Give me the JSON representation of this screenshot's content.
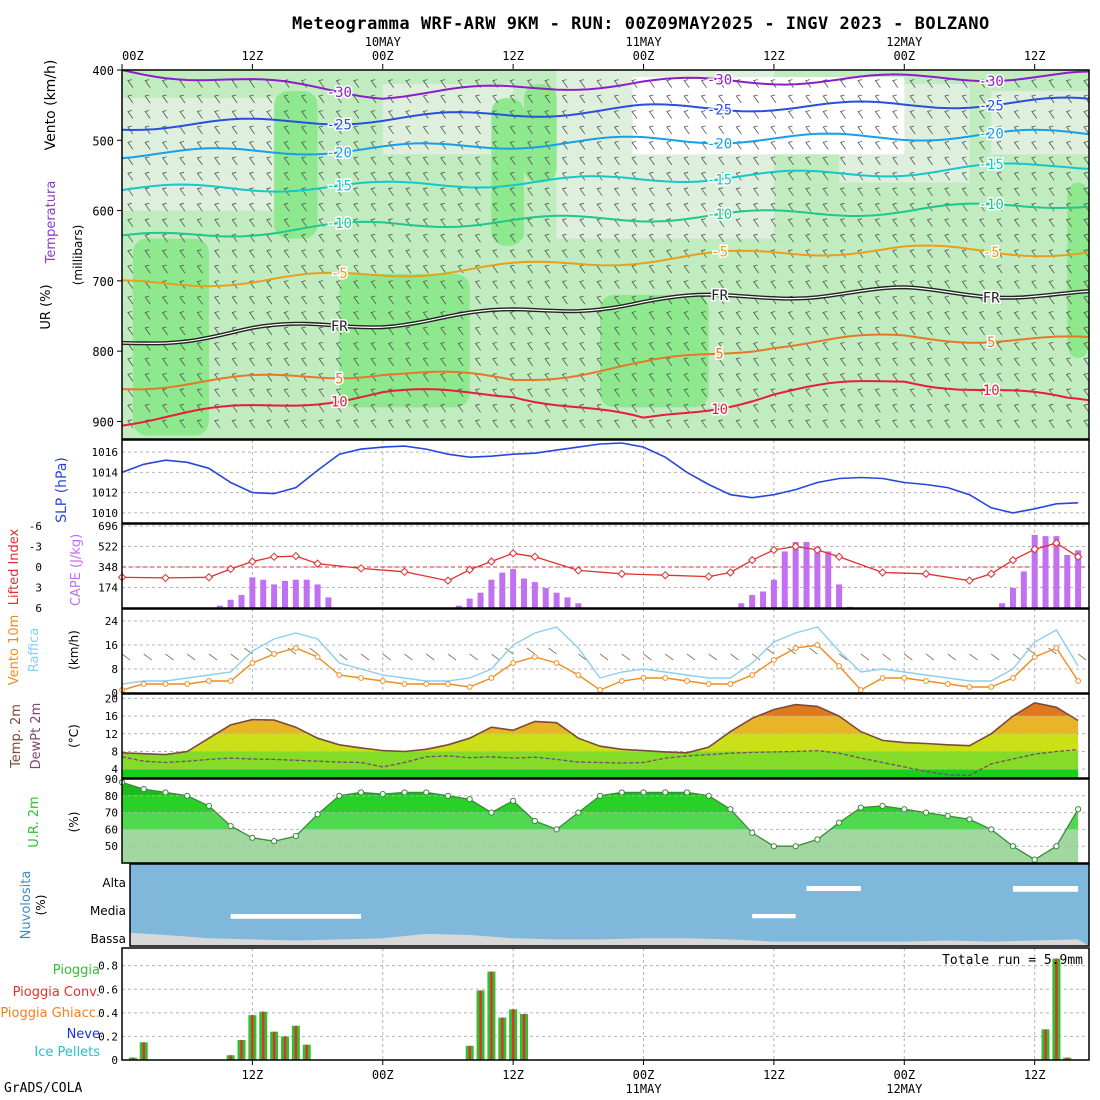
{
  "title": "Meteogramma WRF-ARW 9KM - RUN: 00Z09MAY2025 - INGV 2023 - BOLZANO",
  "footer": "GrADS/COLA",
  "top_time_axis": {
    "ticks": [
      {
        "hour": 0,
        "label": "00Z",
        "date": ""
      },
      {
        "hour": 12,
        "label": "12Z",
        "date": ""
      },
      {
        "hour": 24,
        "label": "00Z",
        "date": "10MAY"
      },
      {
        "hour": 36,
        "label": "12Z",
        "date": ""
      },
      {
        "hour": 48,
        "label": "00Z",
        "date": "11MAY"
      },
      {
        "hour": 60,
        "label": "12Z",
        "date": ""
      },
      {
        "hour": 72,
        "label": "00Z",
        "date": "12MAY"
      },
      {
        "hour": 84,
        "label": "12Z",
        "date": ""
      }
    ]
  },
  "bottom_time_axis": {
    "ticks": [
      {
        "hour": 12,
        "label": "12Z",
        "date": ""
      },
      {
        "hour": 24,
        "label": "00Z",
        "date": ""
      },
      {
        "hour": 36,
        "label": "12Z",
        "date": ""
      },
      {
        "hour": 48,
        "label": "00Z",
        "date": "11MAY"
      },
      {
        "hour": 60,
        "label": "12Z",
        "date": ""
      },
      {
        "hour": 72,
        "label": "00Z",
        "date": "12MAY"
      },
      {
        "hour": 84,
        "label": "12Z",
        "date": ""
      }
    ]
  },
  "chart_data": [
    {
      "id": "upper_air",
      "type": "heatmap",
      "ylabels": [
        "Vento (km/h)",
        "Temperatura",
        "UR (%)"
      ],
      "yaxis_title": "(millibars)",
      "yticks": [
        400,
        500,
        600,
        700,
        800,
        900
      ],
      "ylim": [
        400,
        925
      ],
      "rh_levels": [
        50,
        70,
        90
      ],
      "colors": {
        "rh50": "#e1f0e1",
        "rh70": "#c0ecc0",
        "rh90": "#8ee88e"
      },
      "temperature_isotherms": [
        {
          "label": "-30",
          "color": "#8c1ec8",
          "hours": [
            0,
            24,
            48,
            72,
            87
          ],
          "pressure": [
            400,
            435,
            418,
            412,
            408
          ]
        },
        {
          "label": "-25",
          "color": "#2850dc",
          "hours": [
            0,
            24,
            48,
            72,
            87
          ],
          "pressure": [
            480,
            470,
            455,
            450,
            445
          ]
        },
        {
          "label": "-20",
          "color": "#18a0e6",
          "hours": [
            0,
            24,
            48,
            72,
            87
          ],
          "pressure": [
            520,
            512,
            500,
            495,
            490
          ]
        },
        {
          "label": "-15",
          "color": "#14c8c8",
          "hours": [
            0,
            24,
            48,
            72,
            87
          ],
          "pressure": [
            570,
            565,
            555,
            545,
            535
          ]
        },
        {
          "label": "-10",
          "color": "#1ec88c",
          "hours": [
            0,
            24,
            48,
            72,
            87
          ],
          "pressure": [
            640,
            620,
            610,
            600,
            590
          ]
        },
        {
          "label": "-5",
          "color": "#e6a01e",
          "hours": [
            0,
            12,
            24,
            36,
            48,
            60,
            72,
            87
          ],
          "pressure": [
            705,
            700,
            690,
            680,
            670,
            660,
            655,
            660
          ]
        },
        {
          "label": "FR",
          "color": "#222222",
          "hours": [
            0,
            12,
            24,
            36,
            48,
            60,
            72,
            87
          ],
          "pressure": [
            790,
            770,
            760,
            745,
            730,
            720,
            715,
            720
          ]
        },
        {
          "label": "5",
          "color": "#e67828",
          "hours": [
            0,
            12,
            24,
            36,
            48,
            60,
            72,
            87
          ],
          "pressure": [
            850,
            840,
            830,
            840,
            820,
            790,
            780,
            785
          ]
        },
        {
          "label": "10",
          "color": "#e61e3c",
          "hours": [
            0,
            12,
            24,
            36,
            48,
            60,
            72,
            87
          ],
          "pressure": [
            900,
            880,
            860,
            860,
            900,
            860,
            840,
            870
          ]
        }
      ]
    },
    {
      "id": "slp",
      "type": "line",
      "ylabel": "SLP (hPa)",
      "yticks": [
        1010,
        1012,
        1014,
        1016
      ],
      "ylim": [
        1009,
        1017.2
      ],
      "color": "#2846dc",
      "hours": [
        0,
        2,
        4,
        6,
        8,
        10,
        12,
        14,
        16,
        18,
        20,
        22,
        24,
        26,
        28,
        30,
        32,
        34,
        36,
        38,
        40,
        42,
        44,
        46,
        48,
        50,
        52,
        54,
        56,
        58,
        60,
        62,
        64,
        66,
        68,
        70,
        72,
        74,
        76,
        78,
        80,
        82,
        84,
        86,
        88
      ],
      "values": [
        1014.0,
        1014.8,
        1015.2,
        1015.0,
        1014.4,
        1013.0,
        1012.0,
        1011.9,
        1012.5,
        1014.2,
        1015.8,
        1016.3,
        1016.5,
        1016.6,
        1016.3,
        1015.8,
        1015.5,
        1015.6,
        1015.8,
        1015.9,
        1016.2,
        1016.5,
        1016.8,
        1016.9,
        1016.5,
        1015.5,
        1014.0,
        1012.8,
        1011.8,
        1011.5,
        1011.8,
        1012.3,
        1013.0,
        1013.4,
        1013.5,
        1013.4,
        1013.0,
        1012.8,
        1012.5,
        1011.8,
        1010.5,
        1010.0,
        1010.4,
        1010.9,
        1011.0
      ]
    },
    {
      "id": "cape_li",
      "type": "bar",
      "ylabels": [
        "Lifted Index",
        "CAPE (J/kg)"
      ],
      "li_ticks": [
        -6,
        -3,
        0,
        3,
        6
      ],
      "cape_ticks": [
        174,
        348,
        522,
        696
      ],
      "cape_max": 696,
      "colors": {
        "cape": "#c070f0",
        "li": "#e03030"
      },
      "cape_hours": [
        9,
        10,
        11,
        12,
        13,
        14,
        15,
        16,
        17,
        18,
        19,
        31,
        32,
        33,
        34,
        35,
        36,
        37,
        38,
        39,
        40,
        41,
        42,
        57,
        58,
        59,
        60,
        61,
        62,
        63,
        64,
        65,
        66,
        67,
        81,
        82,
        83,
        84,
        85,
        86,
        87,
        88
      ],
      "cape_values": [
        20,
        70,
        110,
        260,
        240,
        200,
        230,
        240,
        240,
        200,
        90,
        20,
        80,
        130,
        240,
        300,
        330,
        250,
        220,
        170,
        130,
        90,
        40,
        40,
        110,
        140,
        240,
        480,
        560,
        560,
        520,
        480,
        200,
        10,
        40,
        170,
        310,
        620,
        610,
        610,
        450,
        490
      ],
      "li_hours": [
        0,
        4,
        8,
        10,
        12,
        14,
        16,
        18,
        22,
        26,
        30,
        32,
        34,
        36,
        38,
        42,
        46,
        50,
        54,
        56,
        58,
        60,
        62,
        64,
        66,
        70,
        74,
        78,
        80,
        82,
        84,
        86,
        88
      ],
      "li_values": [
        1.5,
        1.6,
        1.5,
        0.3,
        -0.8,
        -1.5,
        -1.6,
        -0.5,
        0.2,
        0.7,
        2.0,
        0.4,
        -0.8,
        -2.0,
        -1.5,
        0.5,
        1.0,
        1.2,
        1.4,
        0.8,
        -1.0,
        -2.5,
        -3.0,
        -2.5,
        -1.5,
        0.8,
        1.0,
        2.0,
        1.0,
        -1.0,
        -2.6,
        -3.5,
        -1.5
      ]
    },
    {
      "id": "wind",
      "type": "line",
      "ylabels": [
        "Vento 10m",
        "Raffica"
      ],
      "yaxis_title": "(km/h)",
      "yticks": [
        0,
        8,
        16,
        24
      ],
      "ylim": [
        0,
        28
      ],
      "colors": {
        "wind": "#f08c1e",
        "gust": "#8ccfee",
        "barbs": "#8c6e50"
      },
      "hours": [
        0,
        2,
        4,
        6,
        8,
        10,
        12,
        14,
        16,
        18,
        20,
        22,
        24,
        26,
        28,
        30,
        32,
        34,
        36,
        38,
        40,
        42,
        44,
        46,
        48,
        50,
        52,
        54,
        56,
        58,
        60,
        62,
        64,
        66,
        68,
        70,
        72,
        74,
        76,
        78,
        80,
        82,
        84,
        86,
        88
      ],
      "wind": [
        1,
        3,
        3,
        3,
        4,
        4,
        10,
        13,
        15,
        12,
        6,
        5,
        4,
        3,
        3,
        3,
        2,
        5,
        10,
        12,
        10,
        6,
        1,
        4,
        5,
        5,
        4,
        3,
        3,
        6,
        11,
        15,
        16,
        9,
        1,
        5,
        5,
        4,
        3,
        2,
        2,
        5,
        12,
        15,
        4
      ],
      "gust": [
        3,
        4,
        4,
        5,
        6,
        7,
        14,
        18,
        20,
        18,
        10,
        8,
        6,
        5,
        4,
        4,
        5,
        8,
        16,
        20,
        22,
        15,
        5,
        7,
        8,
        7,
        6,
        5,
        5,
        10,
        17,
        20,
        22,
        14,
        7,
        8,
        7,
        6,
        5,
        4,
        4,
        8,
        17,
        21,
        9
      ]
    },
    {
      "id": "temperature",
      "type": "area",
      "ylabels": [
        "Temp. 2m",
        "DewPt 2m"
      ],
      "yaxis_title": "(°C)",
      "yticks": [
        4,
        8,
        12,
        16,
        20
      ],
      "ylim": [
        2,
        21
      ],
      "colors": {
        "temp_line": "#7a4a3a",
        "dew_line": "#7a4a6a"
      },
      "hours": [
        0,
        2,
        4,
        6,
        8,
        10,
        12,
        14,
        16,
        18,
        20,
        22,
        24,
        26,
        28,
        30,
        32,
        34,
        36,
        38,
        40,
        42,
        44,
        46,
        48,
        50,
        52,
        54,
        56,
        58,
        60,
        62,
        64,
        66,
        68,
        70,
        72,
        74,
        76,
        78,
        80,
        82,
        84,
        86,
        88
      ],
      "temp": [
        7.7,
        7.5,
        7.3,
        8.0,
        11.0,
        14.0,
        15.2,
        15.1,
        13.5,
        11.0,
        9.5,
        8.8,
        8.2,
        8.0,
        8.5,
        9.5,
        11.0,
        13.5,
        12.8,
        14.8,
        14.5,
        11.0,
        9.2,
        8.5,
        8.2,
        7.9,
        7.7,
        9.0,
        12.5,
        15.5,
        17.5,
        18.6,
        18.2,
        16.0,
        12.5,
        10.5,
        10.0,
        9.8,
        9.5,
        9.3,
        12.0,
        16.0,
        19.0,
        18.0,
        15.0
      ],
      "dewpoint": [
        6.8,
        5.8,
        5.5,
        5.8,
        6.2,
        6.5,
        6.3,
        6.2,
        6.0,
        5.8,
        5.6,
        5.5,
        4.5,
        5.5,
        6.8,
        7.0,
        6.6,
        6.8,
        6.5,
        6.7,
        6.2,
        5.6,
        5.5,
        5.4,
        5.5,
        6.5,
        7.0,
        7.3,
        7.6,
        7.8,
        7.9,
        8.0,
        8.2,
        7.6,
        6.5,
        5.5,
        4.5,
        3.5,
        2.7,
        2.6,
        5.2,
        6.3,
        7.4,
        8.0,
        8.4
      ],
      "bands": [
        {
          "from": 2,
          "to": 4,
          "color": "#18d018"
        },
        {
          "from": 4,
          "to": 8,
          "color": "#84dc28"
        },
        {
          "from": 8,
          "to": 12,
          "color": "#cce018"
        },
        {
          "from": 12,
          "to": 16,
          "color": "#e8b428"
        },
        {
          "from": 16,
          "to": 20,
          "color": "#e07820"
        },
        {
          "from": 20,
          "to": 24,
          "color": "#d83c18"
        }
      ]
    },
    {
      "id": "humidity",
      "type": "area",
      "ylabel": "U.R. 2m",
      "yaxis_title": "(%)",
      "yticks": [
        50,
        60,
        70,
        80,
        90
      ],
      "ylim": [
        40,
        90
      ],
      "hours": [
        0,
        2,
        4,
        6,
        8,
        10,
        12,
        14,
        16,
        18,
        20,
        22,
        24,
        26,
        28,
        30,
        32,
        34,
        36,
        38,
        40,
        42,
        44,
        46,
        48,
        50,
        52,
        54,
        56,
        58,
        60,
        62,
        64,
        66,
        68,
        70,
        72,
        74,
        76,
        78,
        80,
        82,
        84,
        86,
        88
      ],
      "values": [
        88,
        84,
        82,
        80,
        74,
        62,
        55,
        53,
        56,
        69,
        80,
        82,
        81,
        82,
        82,
        80,
        78,
        70,
        77,
        65,
        60,
        70,
        80,
        82,
        82,
        82,
        82,
        80,
        72,
        58,
        50,
        50,
        54,
        64,
        73,
        74,
        72,
        70,
        68,
        66,
        60,
        50,
        42,
        50,
        72
      ],
      "bands": [
        {
          "from": 40,
          "to": 60,
          "color": "#a0d8a0"
        },
        {
          "from": 60,
          "to": 70,
          "color": "#50d850"
        },
        {
          "from": 70,
          "to": 80,
          "color": "#28d028"
        },
        {
          "from": 80,
          "to": 90,
          "color": "#20b820"
        }
      ]
    },
    {
      "id": "clouds",
      "type": "area",
      "ylabels": [
        "Nuvolosita",
        "(%)"
      ],
      "levels": [
        "Alta",
        "Media",
        "Bassa"
      ],
      "colors": {
        "cover": "#80b8dc",
        "clear": "#ffffff",
        "low": "#d8d8d8"
      },
      "high_gaps": [
        {
          "hours": [
            63,
            68
          ],
          "depth": 0.4
        },
        {
          "hours": [
            82,
            88
          ],
          "depth": 0.55
        }
      ],
      "medium_gaps": [
        {
          "hours": [
            10,
            22
          ],
          "depth": 0.35
        },
        {
          "hours": [
            58,
            62
          ],
          "depth": 0.25
        }
      ],
      "low_hours": [
        0,
        4,
        8,
        12,
        16,
        20,
        24,
        28,
        32,
        36,
        40,
        44,
        48,
        52,
        56,
        60,
        64,
        68,
        72,
        76,
        80,
        84,
        88
      ],
      "low_values": [
        0.6,
        0.5,
        0.35,
        0.3,
        0.25,
        0.3,
        0.35,
        0.55,
        0.5,
        0.35,
        0.3,
        0.3,
        0.35,
        0.35,
        0.3,
        0.2,
        0.2,
        0.2,
        0.2,
        0.25,
        0.2,
        0.25,
        0.3
      ]
    },
    {
      "id": "precipitation",
      "type": "bar",
      "ylabels": [
        "Pioggia",
        "Pioggia Conv.",
        "Pioggia Ghiacc.",
        "Neve",
        "Ice Pellets"
      ],
      "label_colors": [
        "#30c030",
        "#e03030",
        "#f08020",
        "#2030e0",
        "#20c0d0"
      ],
      "yticks": [
        0,
        0.2,
        0.4,
        0.6,
        0.8
      ],
      "ylim": [
        0,
        0.95
      ],
      "total_label": "Totale run = 5.9mm",
      "hours": [
        1,
        2,
        10,
        11,
        12,
        13,
        14,
        15,
        16,
        17,
        32,
        33,
        34,
        35,
        36,
        37,
        38,
        85,
        86,
        87
      ],
      "values": [
        0.02,
        0.15,
        0.04,
        0.17,
        0.38,
        0.41,
        0.24,
        0.2,
        0.29,
        0.13,
        0.12,
        0.59,
        0.75,
        0.36,
        0.43,
        0.39,
        0.0,
        0.26,
        0.86,
        0.02
      ],
      "colors": {
        "rain": "#30c030",
        "conv": "#e03030"
      }
    }
  ]
}
